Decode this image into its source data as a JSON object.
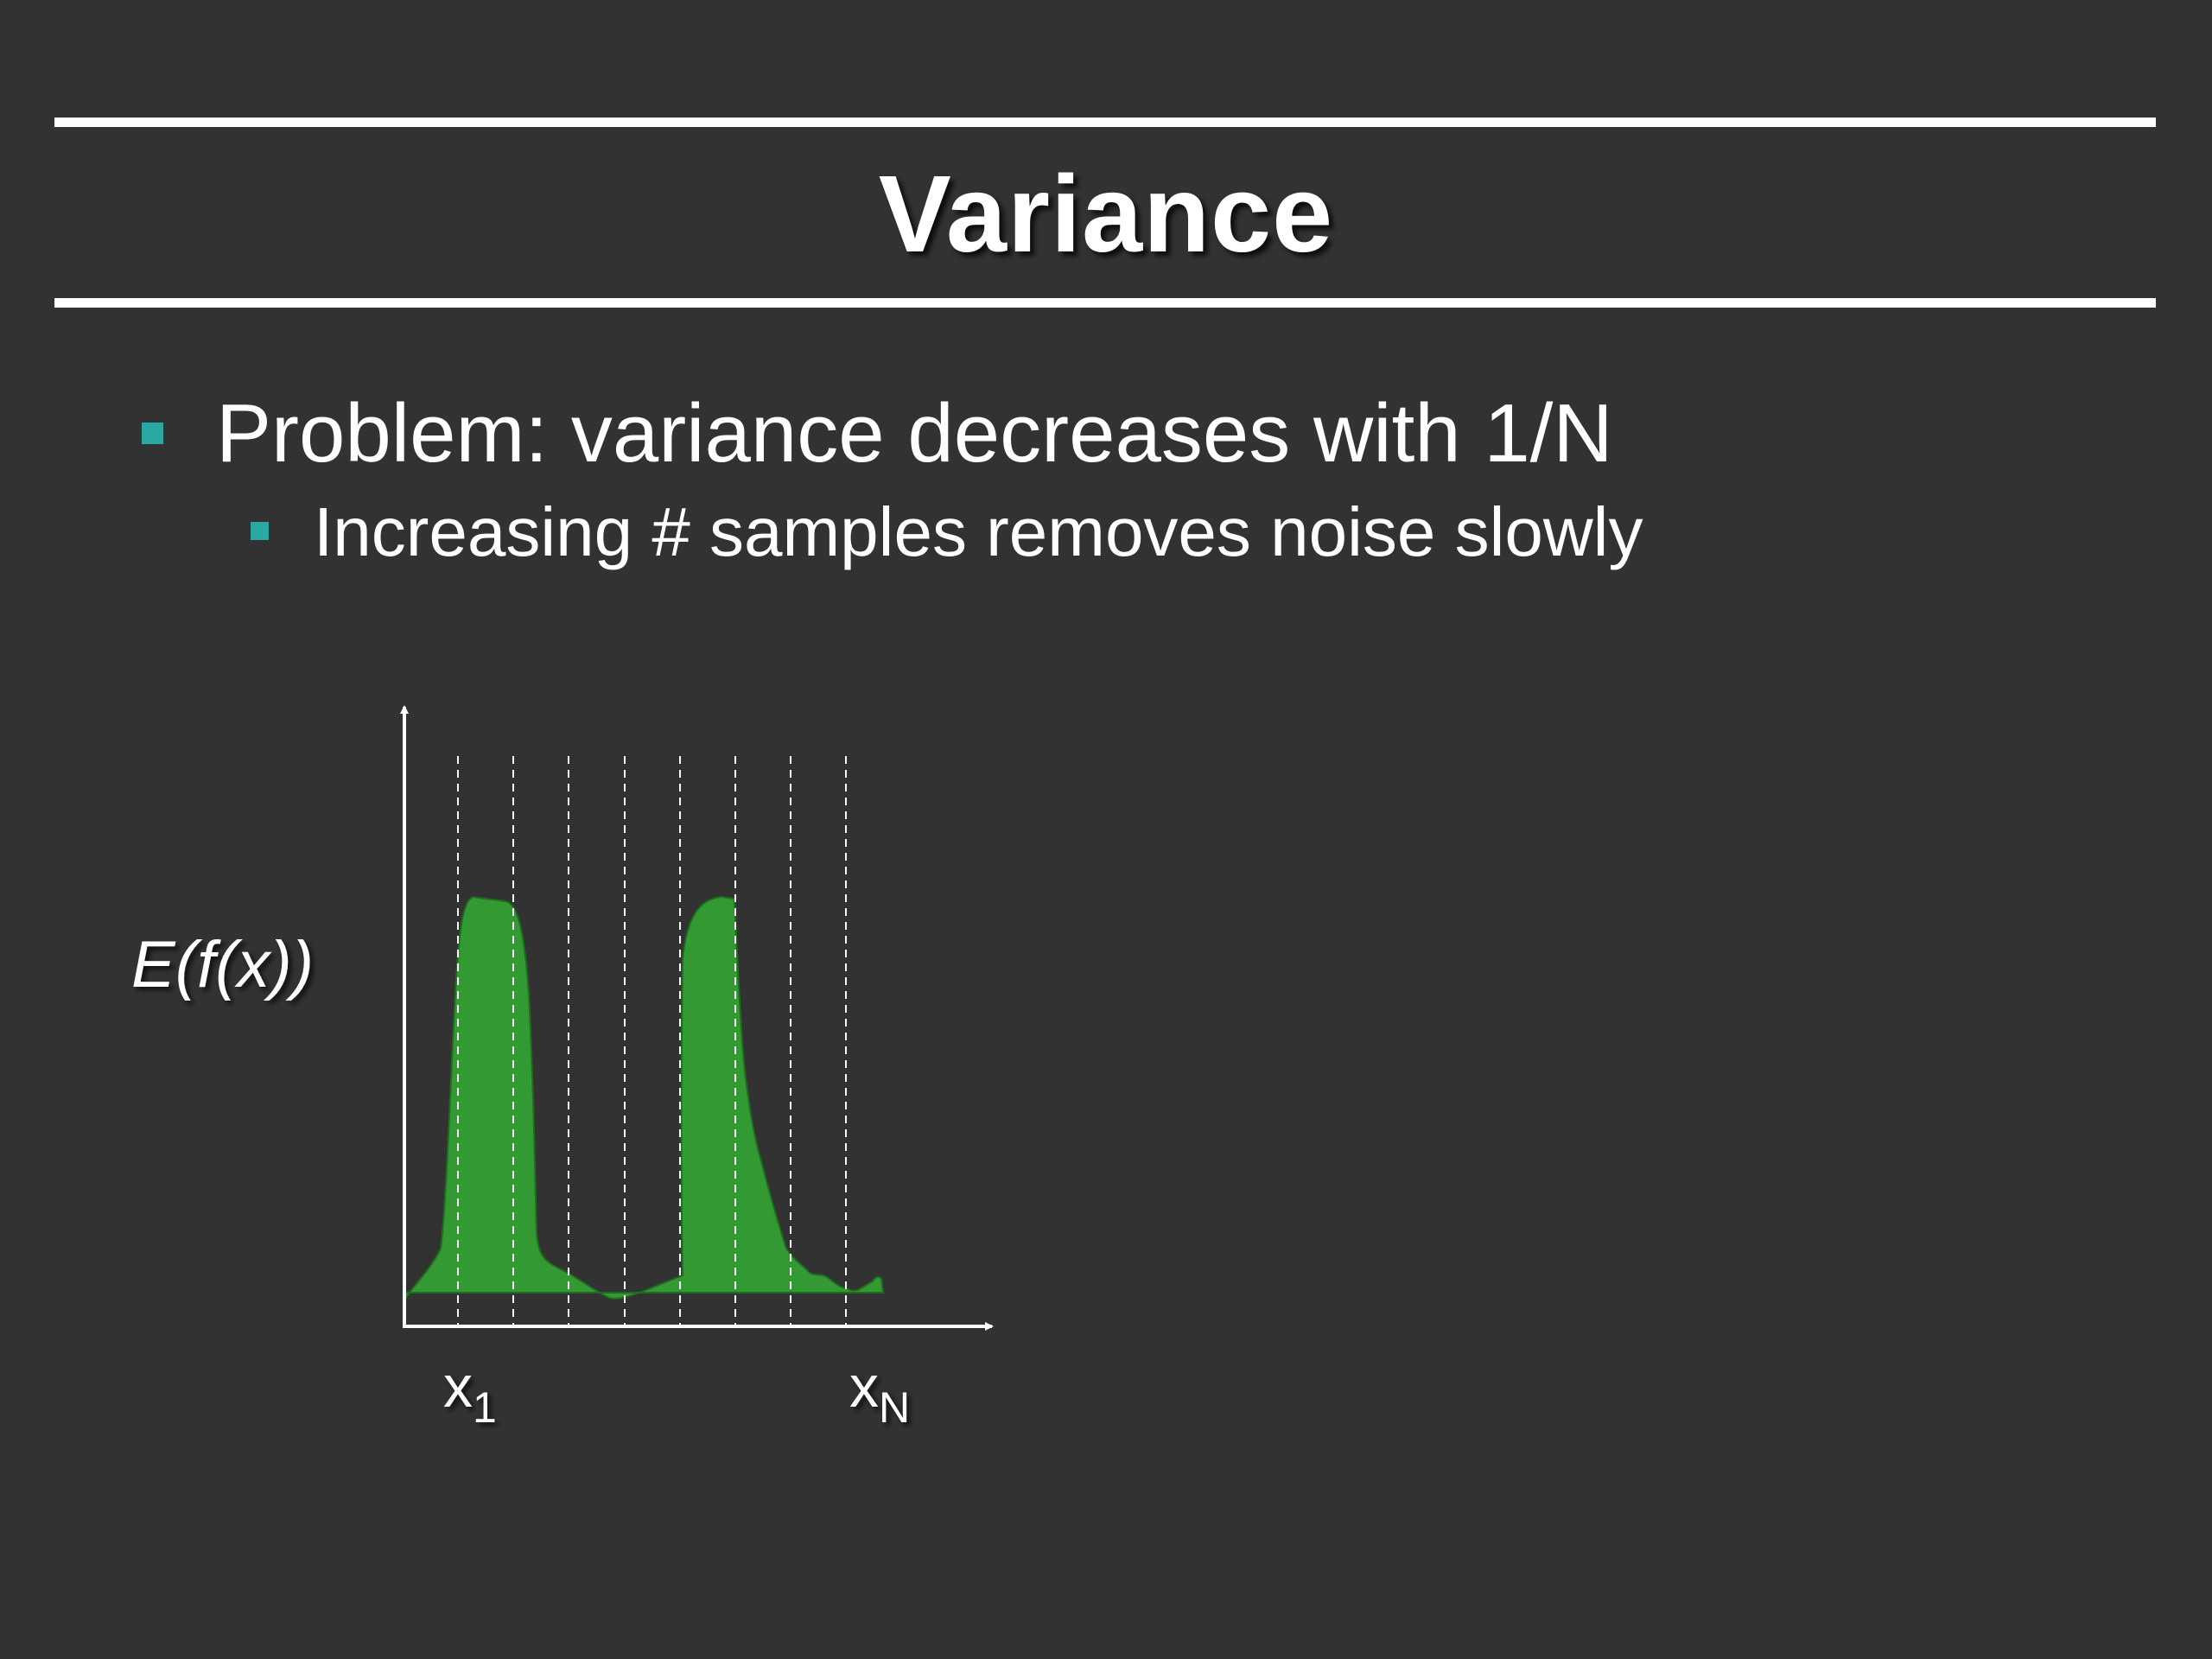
{
  "slide": {
    "title": "Variance",
    "bullets": [
      {
        "level": 1,
        "text": "Problem: variance decreases with 1/N"
      },
      {
        "level": 2,
        "text": "Increasing # samples removes noise slowly"
      }
    ]
  },
  "diagram": {
    "expectation_label": "E(f(x))",
    "x_first_label": "x",
    "x_first_subscript": "1",
    "x_last_label": "x",
    "x_last_subscript": "N",
    "fill_color": "#339933",
    "sample_count": 8
  },
  "colors": {
    "background": "#323232",
    "text": "#ffffff",
    "bullet": "#2aa8a4",
    "curve_fill": "#339933"
  }
}
